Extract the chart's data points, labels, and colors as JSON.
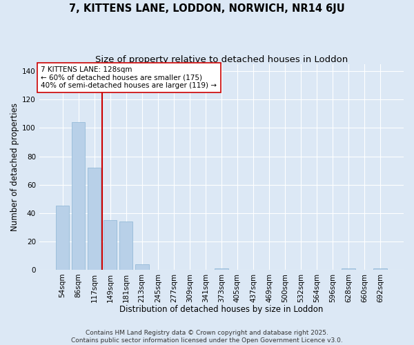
{
  "title": "7, KITTENS LANE, LODDON, NORWICH, NR14 6JU",
  "subtitle": "Size of property relative to detached houses in Loddon",
  "xlabel": "Distribution of detached houses by size in Loddon",
  "ylabel": "Number of detached properties",
  "categories": [
    "54sqm",
    "86sqm",
    "117sqm",
    "149sqm",
    "181sqm",
    "213sqm",
    "245sqm",
    "277sqm",
    "309sqm",
    "341sqm",
    "373sqm",
    "405sqm",
    "437sqm",
    "469sqm",
    "500sqm",
    "532sqm",
    "564sqm",
    "596sqm",
    "628sqm",
    "660sqm",
    "692sqm"
  ],
  "values": [
    45,
    104,
    72,
    35,
    34,
    4,
    0,
    0,
    0,
    0,
    1,
    0,
    0,
    0,
    0,
    0,
    0,
    0,
    1,
    0,
    1
  ],
  "bar_color": "#b8d0e8",
  "bar_edgecolor": "#8ab4d4",
  "bg_color": "#dce8f5",
  "grid_color": "#ffffff",
  "property_line_x": 2.5,
  "property_line_color": "#cc0000",
  "annotation_text": "7 KITTENS LANE: 128sqm\n← 60% of detached houses are smaller (175)\n40% of semi-detached houses are larger (119) →",
  "annotation_box_edgecolor": "#cc0000",
  "annotation_box_facecolor": "#ffffff",
  "ylim": [
    0,
    145
  ],
  "yticks": [
    0,
    20,
    40,
    60,
    80,
    100,
    120,
    140
  ],
  "footnote": "Contains HM Land Registry data © Crown copyright and database right 2025.\nContains public sector information licensed under the Open Government Licence v3.0.",
  "title_fontsize": 10.5,
  "subtitle_fontsize": 9.5,
  "xlabel_fontsize": 8.5,
  "ylabel_fontsize": 8.5,
  "tick_fontsize": 7.5,
  "annotation_fontsize": 7.5,
  "footnote_fontsize": 6.5
}
